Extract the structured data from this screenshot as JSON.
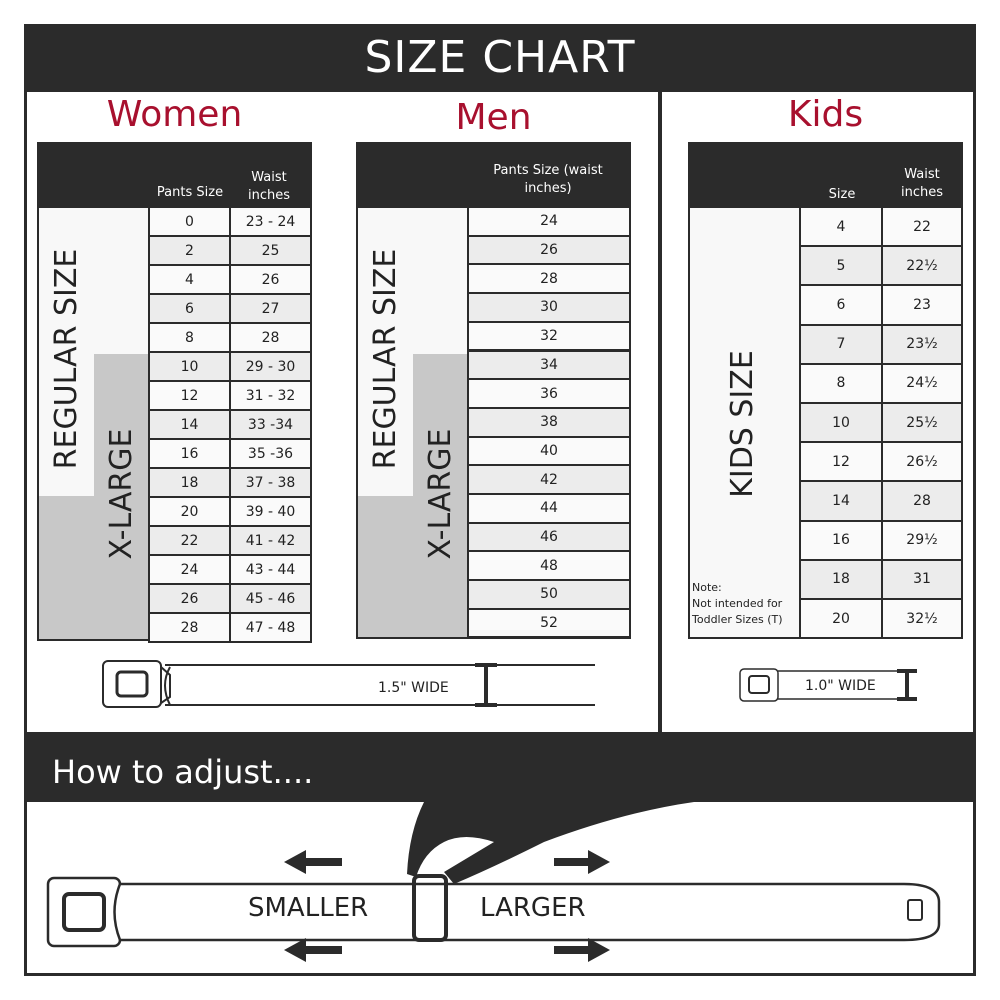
{
  "title": "SIZE CHART",
  "women": {
    "title": "Women",
    "headers": [
      "Pants Size",
      "Waist inches"
    ],
    "regular_label": "REGULAR SIZE",
    "xlarge_label": "X-LARGE",
    "rows": [
      [
        "0",
        "23 - 24"
      ],
      [
        "2",
        "25"
      ],
      [
        "4",
        "26"
      ],
      [
        "6",
        "27"
      ],
      [
        "8",
        "28"
      ],
      [
        "10",
        "29 - 30"
      ],
      [
        "12",
        "31 - 32"
      ],
      [
        "14",
        "33 -34"
      ],
      [
        "16",
        "35 -36"
      ],
      [
        "18",
        "37 - 38"
      ],
      [
        "20",
        "39 - 40"
      ],
      [
        "22",
        "41 - 42"
      ],
      [
        "24",
        "43 - 44"
      ],
      [
        "26",
        "45 - 46"
      ],
      [
        "28",
        "47 - 48"
      ]
    ]
  },
  "men": {
    "title": "Men",
    "headers": [
      "Pants Size (waist inches)"
    ],
    "regular_label": "REGULAR SIZE",
    "xlarge_label": "X-LARGE",
    "rows": [
      "24",
      "26",
      "28",
      "30",
      "32",
      "34",
      "36",
      "38",
      "40",
      "42",
      "44",
      "46",
      "48",
      "50",
      "52"
    ]
  },
  "kids": {
    "title": "Kids",
    "headers": [
      "Size",
      "Waist inches"
    ],
    "label": "KIDS SIZE",
    "note_title": "Note:",
    "note_text": "Not intended for Toddler Sizes (T)",
    "rows": [
      [
        "4",
        "22"
      ],
      [
        "5",
        "22½"
      ],
      [
        "6",
        "23"
      ],
      [
        "7",
        "23½"
      ],
      [
        "8",
        "24½"
      ],
      [
        "10",
        "25½"
      ],
      [
        "12",
        "26½"
      ],
      [
        "14",
        "28"
      ],
      [
        "16",
        "29½"
      ],
      [
        "18",
        "31"
      ],
      [
        "20",
        "32½"
      ]
    ]
  },
  "adult_belt_width": "1.5\" WIDE",
  "kids_belt_width": "1.0\" WIDE",
  "adjust": {
    "title": "How to adjust....",
    "smaller": "SMALLER",
    "larger": "LARGER"
  },
  "colors": {
    "dark": "#2b2b2b",
    "accent": "#a8102e",
    "xlarge_gray": "#c8c8c8"
  }
}
